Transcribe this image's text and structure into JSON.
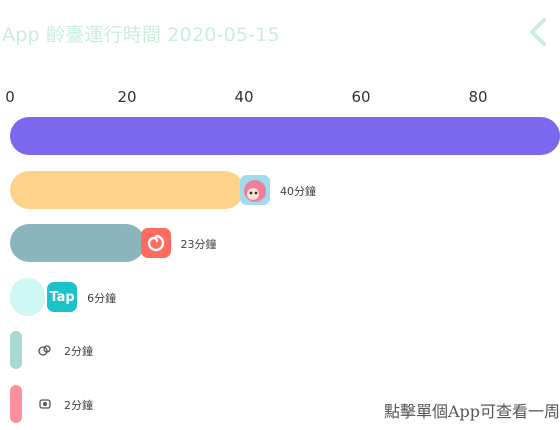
{
  "header": {
    "title": "App 齡臺運行時間 2020-05-15",
    "back_icon": "chevron-left-icon",
    "title_color": "#c9eedc"
  },
  "axis": {
    "ticks": [
      "0",
      "20",
      "40",
      "60",
      "80"
    ]
  },
  "rows": [
    {
      "minutes": 95,
      "label": "",
      "color": "#7b68ee",
      "icon": "none"
    },
    {
      "minutes": 40,
      "label": "40分鐘",
      "color": "#ffd28c",
      "icon": "anime-avatar-icon"
    },
    {
      "minutes": 23,
      "label": "23分鐘",
      "color": "#8bb5bd",
      "icon": "snail-icon"
    },
    {
      "minutes": 6,
      "label": "6分鐘",
      "color": "#cff7f4",
      "icon": "tap-icon",
      "icon_text": "Tap"
    },
    {
      "minutes": 2,
      "label": "2分鐘",
      "color": "#a6d8d6",
      "icon": "small-app-icon"
    },
    {
      "minutes": 2,
      "label": "2分鐘",
      "color": "#ff8f9c",
      "icon": "small-app-icon-2"
    }
  ],
  "footer": {
    "link_text": "點擊單個App可查看一周"
  }
}
